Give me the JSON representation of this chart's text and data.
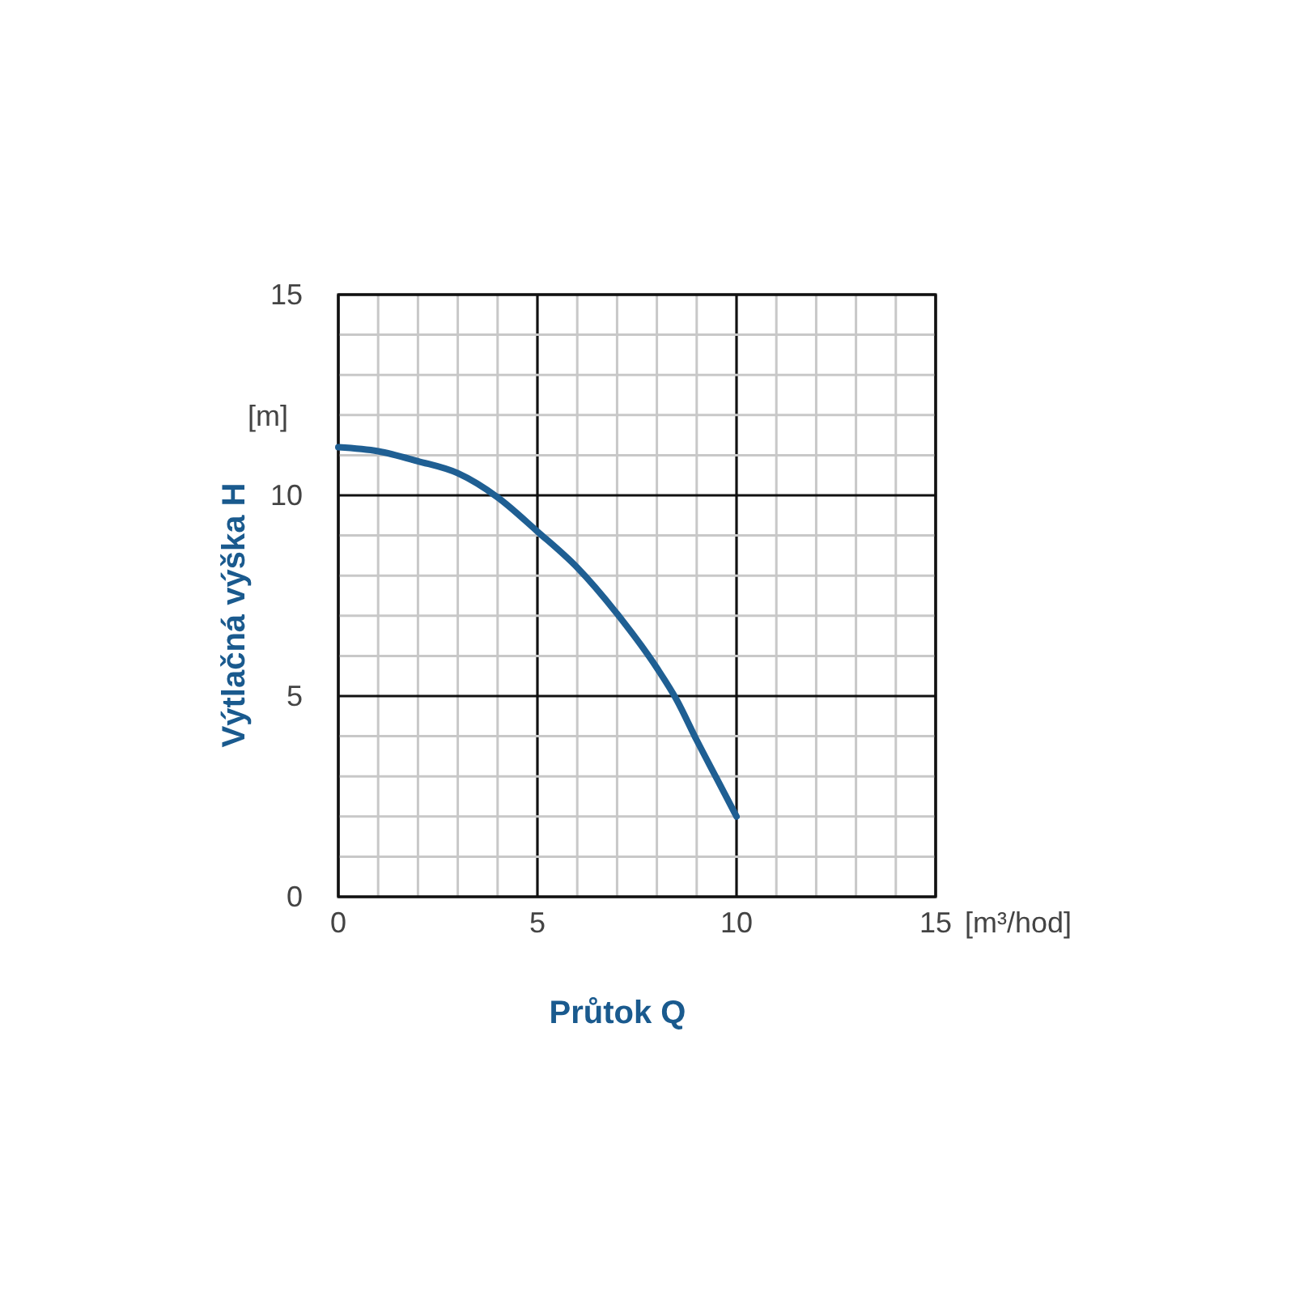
{
  "chart_data": {
    "type": "line",
    "xlabel": "Průtok Q",
    "ylabel": "Výtlačná výška H",
    "annotations": [
      "[m]",
      "[m³/hod]"
    ],
    "xlim": [
      0,
      15
    ],
    "ylim": [
      0,
      15
    ],
    "xticks": [
      0,
      {
        "value": 1,
        "label": null
      },
      {
        "value": 2,
        "label": null
      },
      {
        "value": 3,
        "label": null
      },
      {
        "value": 4,
        "label": null
      },
      5,
      {
        "value": 6,
        "label": null
      },
      {
        "value": 7,
        "label": null
      },
      {
        "value": 8,
        "label": null
      },
      {
        "value": 9,
        "label": null
      },
      10,
      {
        "value": 11,
        "label": null
      },
      {
        "value": 12,
        "label": null
      },
      {
        "value": 13,
        "label": null
      },
      {
        "value": 14,
        "label": null
      },
      15
    ],
    "yticks": [
      0,
      {
        "value": 1,
        "label": null
      },
      {
        "value": 2,
        "label": null
      },
      {
        "value": 3,
        "label": null
      },
      {
        "value": 4,
        "label": null
      },
      5,
      {
        "value": 6,
        "label": null
      },
      {
        "value": 7,
        "label": null
      },
      {
        "value": 8,
        "label": null
      },
      {
        "value": 9,
        "label": null
      },
      10,
      {
        "value": 11,
        "label": null
      },
      {
        "value": 12,
        "label": null
      },
      {
        "value": 13,
        "label": null
      },
      {
        "value": 14,
        "label": null
      },
      15
    ],
    "grid": true,
    "series": [
      {
        "color": "#1f5f93",
        "x": [
          0,
          1,
          2,
          3,
          4,
          5,
          6,
          7,
          8,
          8.5,
          9,
          9.5,
          10
        ],
        "values": [
          11.2,
          11.1,
          10.85,
          10.55,
          9.95,
          9.1,
          8.2,
          7.05,
          5.7,
          4.9,
          3.9,
          2.95,
          2
        ]
      }
    ]
  }
}
